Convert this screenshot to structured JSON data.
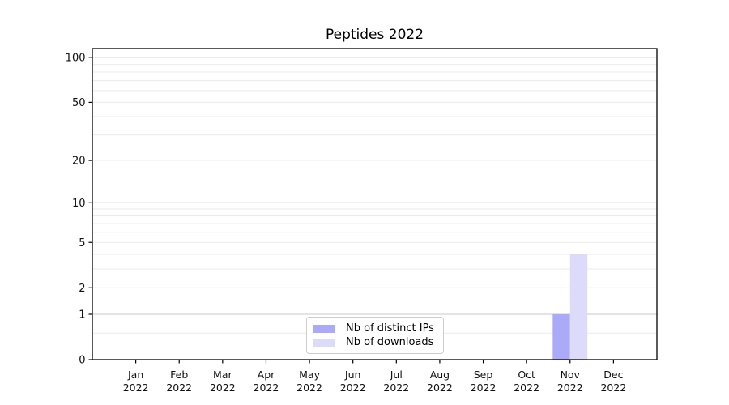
{
  "figure": {
    "title": "Peptides 2022"
  },
  "chart_data": {
    "type": "bar",
    "title": "Peptides 2022",
    "categories": [
      "Jan 2022",
      "Feb 2022",
      "Mar 2022",
      "Apr 2022",
      "May 2022",
      "Jun 2022",
      "Jul 2022",
      "Aug 2022",
      "Sep 2022",
      "Oct 2022",
      "Nov 2022",
      "Dec 2022"
    ],
    "series": [
      {
        "name": "Nb of distinct IPs",
        "color": "#aaaaf8",
        "values": [
          0,
          0,
          0,
          0,
          0,
          0,
          0,
          0,
          0,
          0,
          1,
          0
        ]
      },
      {
        "name": "Nb of downloads",
        "color": "#dcdcfa",
        "values": [
          0,
          0,
          0,
          0,
          0,
          0,
          0,
          0,
          0,
          0,
          4,
          0
        ]
      }
    ],
    "xlabel": "",
    "ylabel": "",
    "yscale": "log1p",
    "ylim": [
      0,
      115
    ],
    "yticks": [
      0,
      1,
      2,
      5,
      10,
      20,
      50,
      100
    ],
    "yticks_decade_grid": [
      1,
      10,
      100
    ],
    "yticks_minor": [
      0.5,
      3,
      4,
      6,
      7,
      8,
      9,
      30,
      40,
      60,
      70,
      80,
      90
    ],
    "grid": "horizontal",
    "legend_position": "lower center",
    "colors": {
      "decade_grid": "#c9c9c9",
      "minor_grid": "#ebebeb",
      "axis": "#000000",
      "tick_label": "#111111",
      "background": "#ffffff"
    }
  }
}
